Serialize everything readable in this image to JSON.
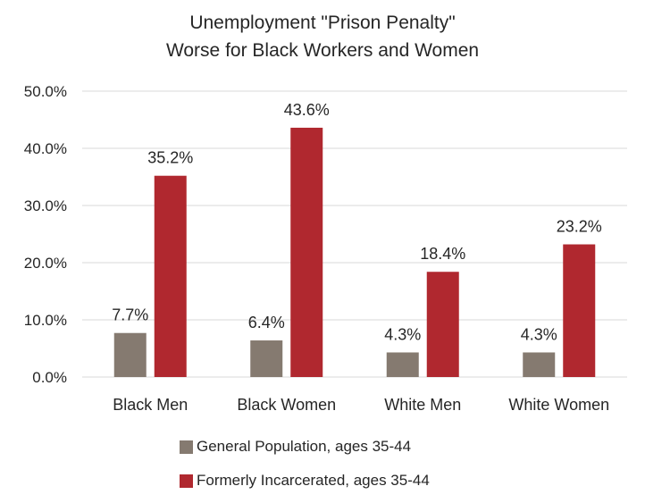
{
  "chart_data": {
    "type": "bar",
    "title_lines": [
      "Unemployment \"Prison Penalty\"",
      "Worse for Black Workers and Women"
    ],
    "categories": [
      "Black Men",
      "Black Women",
      "White Men",
      "White Women"
    ],
    "series": [
      {
        "name": "General Population, ages 35-44",
        "color": "#857a70",
        "values": [
          7.7,
          6.4,
          4.3,
          4.3
        ],
        "labels": [
          "7.7%",
          "6.4%",
          "4.3%",
          "4.3%"
        ]
      },
      {
        "name": "Formerly Incarcerated, ages 35-44",
        "color": "#b0282f",
        "values": [
          35.2,
          43.6,
          18.4,
          23.2
        ],
        "labels": [
          "35.2%",
          "43.6%",
          "18.4%",
          "23.2%"
        ]
      }
    ],
    "y_ticks": [
      "0.0%",
      "10.0%",
      "20.0%",
      "30.0%",
      "40.0%",
      "50.0%"
    ],
    "ylim": [
      0,
      50
    ],
    "grid": true,
    "legend_position": "bottom"
  }
}
